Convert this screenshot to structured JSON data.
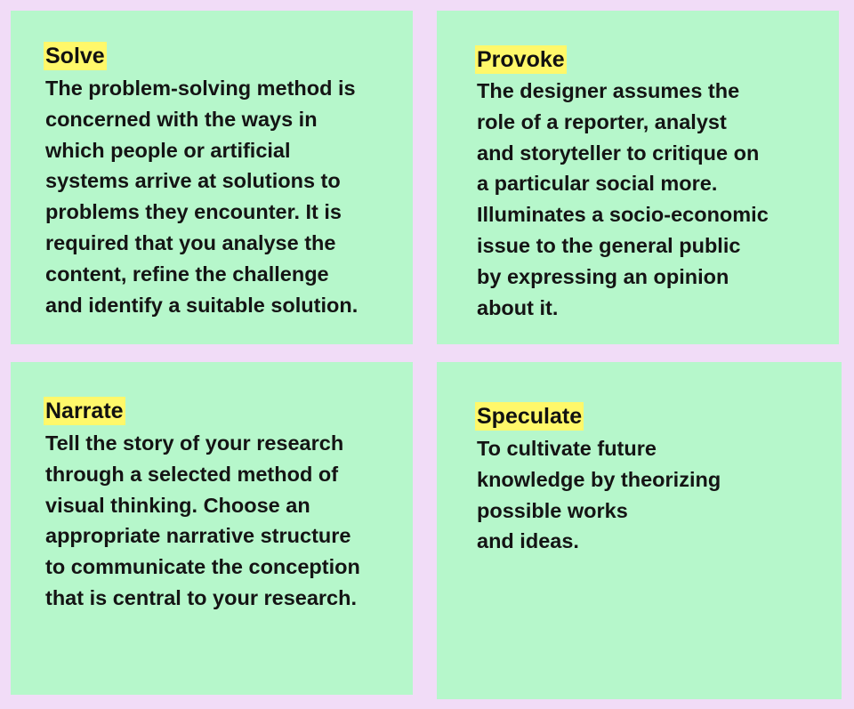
{
  "cards": [
    {
      "title": "Solve",
      "text": "The problem-solving method is\nconcerned with the ways in\nwhich people or artificial\nsystems arrive at solutions to\nproblems they encounter. It is\nrequired that you analyse the\ncontent, refine the challenge\nand identify a suitable solution."
    },
    {
      "title": "Provoke",
      "text": "The designer assumes the\nrole of a reporter, analyst\nand storyteller to critique on\na particular social more.\nIlluminates a socio-economic\nissue to the general public\nby expressing an opinion\nabout it."
    },
    {
      "title": "Narrate",
      "text": "Tell the story of your research\nthrough a selected method of\nvisual thinking. Choose an\nappropriate narrative structure\nto communicate the conception\nthat is central to your research."
    },
    {
      "title": "Speculate",
      "text": "To cultivate future\nknowledge by theorizing\npossible works\nand ideas."
    }
  ],
  "colors": {
    "page_background": "#f1dcf7",
    "card_background": "#b6f7cb",
    "title_highlight": "#fff86a",
    "text": "#141414"
  }
}
